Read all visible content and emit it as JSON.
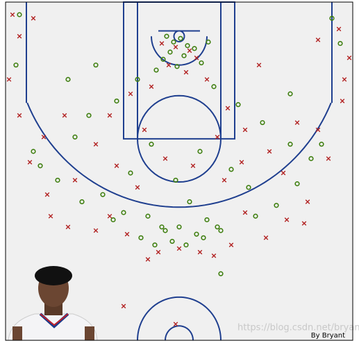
{
  "chart_data": {
    "type": "scatter",
    "xlim": [
      -250,
      250
    ],
    "ylim": [
      -47.5,
      422.5
    ],
    "background": "#f0f0f0",
    "court_color": "#1f3f8f",
    "series": [
      {
        "color": "#3f7f10",
        "marker": "o",
        "x": [
          -8,
          2,
          12,
          -13,
          7,
          22,
          -23,
          32,
          -3,
          -33,
          42,
          -18,
          -60,
          50,
          -90,
          85,
          -130,
          120,
          -150,
          160,
          -200,
          190,
          -40,
          30,
          -70,
          75,
          -110,
          100,
          -5,
          15,
          -45,
          40,
          -25,
          60,
          -80,
          -95,
          110,
          -140,
          140,
          -175,
          170,
          -210,
          205,
          -235,
          232,
          -230,
          220,
          0,
          -20,
          25,
          -55,
          55,
          -10,
          10,
          -35,
          35,
          60,
          -120,
          -160,
          160
        ],
        "values": [
          8,
          3,
          13,
          22,
          27,
          17,
          32,
          37,
          42,
          47,
          8,
          0,
          60,
          70,
          90,
          95,
          110,
          120,
          140,
          150,
          180,
          170,
          150,
          160,
          190,
          185,
          220,
          210,
          200,
          230,
          250,
          255,
          265,
          270,
          245,
          255,
          250,
          230,
          235,
          200,
          205,
          160,
          150,
          40,
          10,
          -30,
          -25,
          265,
          270,
          275,
          280,
          265,
          285,
          290,
          290,
          280,
          330,
          40,
          60,
          80
        ]
      },
      {
        "color": "#b22222",
        "marker": "x",
        "x": [
          -5,
          15,
          -25,
          25,
          -15,
          10,
          -40,
          40,
          -70,
          70,
          -100,
          95,
          -120,
          130,
          -165,
          170,
          -195,
          200,
          -230,
          235,
          -50,
          55,
          -20,
          20,
          -60,
          65,
          -90,
          90,
          -150,
          150,
          -190,
          185,
          -215,
          215,
          -185,
          180,
          -160,
          155,
          -120,
          125,
          -75,
          75,
          -30,
          30,
          0,
          -45,
          50,
          -100,
          95,
          -245,
          245,
          -240,
          238,
          -80,
          -5,
          -230,
          230,
          -210,
          200,
          115
        ],
        "values": [
          15,
          20,
          10,
          30,
          40,
          50,
          70,
          60,
          80,
          100,
          110,
          130,
          150,
          160,
          110,
          120,
          140,
          130,
          110,
          90,
          130,
          140,
          170,
          180,
          210,
          200,
          180,
          175,
          200,
          190,
          220,
          230,
          175,
          170,
          250,
          260,
          265,
          255,
          270,
          280,
          275,
          290,
          300,
          300,
          295,
          310,
          305,
          250,
          245,
          60,
          30,
          -30,
          60,
          375,
          400,
          0,
          -10,
          -25,
          5,
          40
        ]
      }
    ],
    "annotation": "By Bryant",
    "watermark": "https://blog.csdn.net/bryant_meng"
  }
}
